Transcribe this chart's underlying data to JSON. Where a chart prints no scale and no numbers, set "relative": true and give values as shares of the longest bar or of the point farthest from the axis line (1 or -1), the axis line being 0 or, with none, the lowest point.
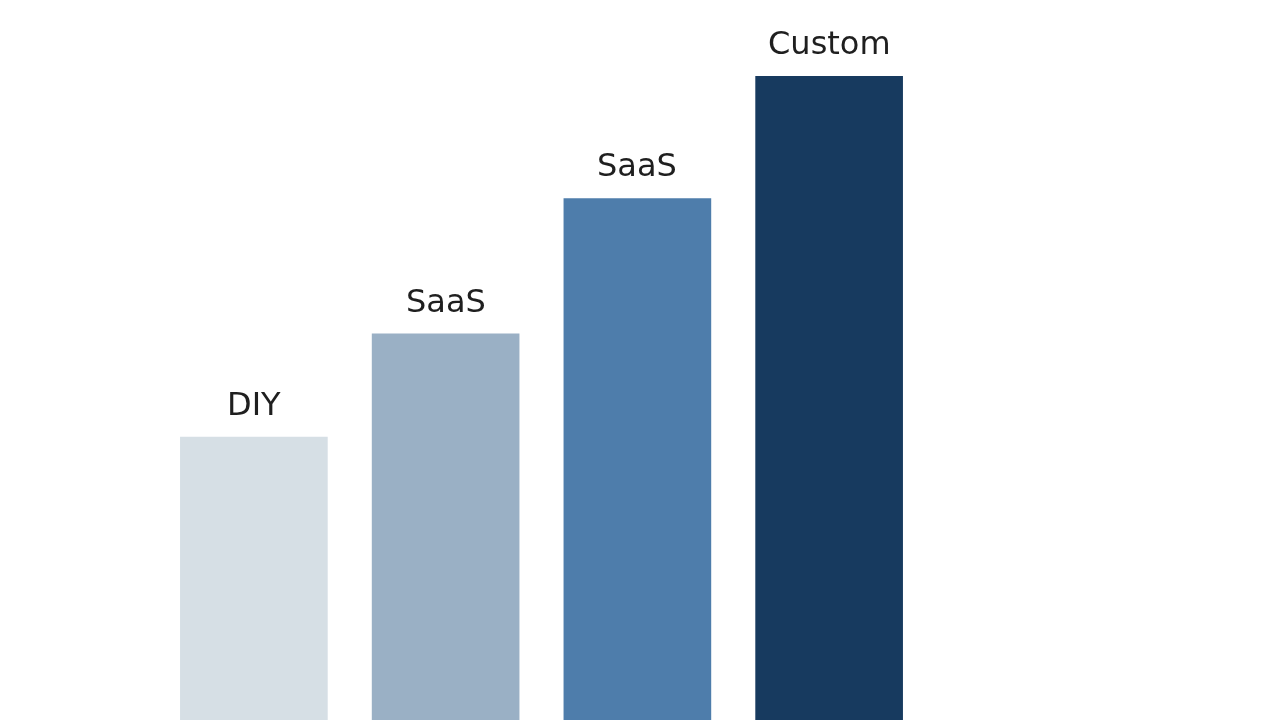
{
  "chart_data": {
    "type": "bar",
    "relative": true,
    "tick_labels": false,
    "categories": [
      "DIY",
      "SaaS",
      "SaaS",
      "Custom"
    ],
    "values": [
      0.44,
      0.6,
      0.81,
      1
    ],
    "colors": [
      "#d6dfe5",
      "#9ab0c5",
      "#4e7dab",
      "#173a5f"
    ]
  }
}
